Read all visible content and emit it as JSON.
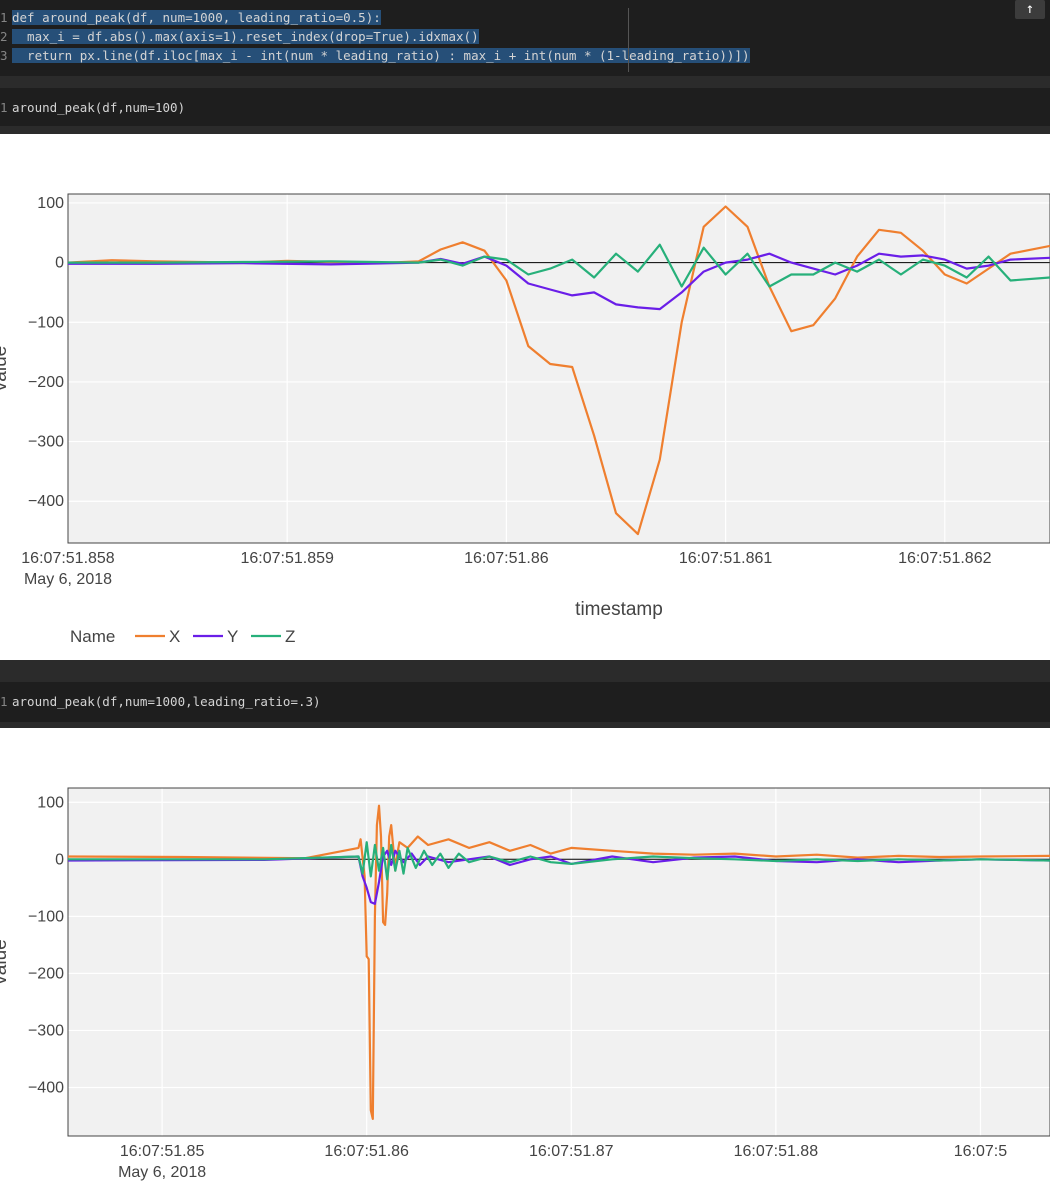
{
  "cells": [
    {
      "lines": [
        "def around_peak(df, num=1000, leading_ratio=0.5):",
        "  max_i = df.abs().max(axis=1).reset_index(drop=True).idxmax()",
        "  return px.line(df.iloc[max_i - int(num * leading_ratio) : max_i + int(num * (1-leading_ratio))])"
      ],
      "line_numbers": [
        "1",
        "2",
        "3"
      ]
    },
    {
      "lines": [
        "around_peak(df,num=100)"
      ],
      "line_numbers": [
        "1"
      ]
    },
    {
      "lines": [
        "around_peak(df,num=1000,leading_ratio=.3)"
      ],
      "line_numbers": [
        "1"
      ]
    }
  ],
  "toolbar": {
    "scroll_up_icon": "arrow-up-icon",
    "scroll_up_label": "↑"
  },
  "colors": {
    "X": "#ef7f2f",
    "Y": "#6a1ee8",
    "Z": "#27b07a",
    "plot_bg": "#f1f1f1",
    "code_bg": "#1e1e1e"
  },
  "chart_data": [
    {
      "type": "line",
      "xlabel": "timestamp",
      "ylabel": "value",
      "legend_title": "Name",
      "legend_position": "bottom-left",
      "x_ticks": [
        "16:07:51.858",
        "16:07:51.859",
        "16:07:51.86",
        "16:07:51.861",
        "16:07:51.862"
      ],
      "x_tick_date": "May 6, 2018",
      "y_ticks": [
        "100",
        "0",
        "−100",
        "−200",
        "−300",
        "−400"
      ],
      "y_tick_values": [
        100,
        0,
        -100,
        -200,
        -300,
        -400
      ],
      "ylim": [
        -470,
        115
      ],
      "xlim_ms": [
        858.0,
        862.48
      ],
      "grid": true,
      "series": [
        {
          "name": "X",
          "x": [
            858.0,
            858.2,
            858.4,
            858.6,
            858.8,
            859.0,
            859.2,
            859.4,
            859.6,
            859.7,
            859.8,
            859.9,
            860.0,
            860.1,
            860.2,
            860.3,
            860.4,
            860.5,
            860.6,
            860.7,
            860.8,
            860.9,
            861.0,
            861.1,
            861.2,
            861.3,
            861.4,
            861.5,
            861.6,
            861.7,
            861.8,
            861.9,
            862.0,
            862.1,
            862.2,
            862.3,
            862.48
          ],
          "y": [
            0,
            4,
            2,
            1,
            0,
            3,
            1,
            -1,
            2,
            22,
            34,
            20,
            -30,
            -140,
            -170,
            -175,
            -290,
            -420,
            -455,
            -330,
            -100,
            60,
            94,
            60,
            -40,
            -115,
            -105,
            -60,
            10,
            55,
            50,
            20,
            -20,
            -35,
            -10,
            15,
            28
          ]
        },
        {
          "name": "Y",
          "x": [
            858.0,
            858.4,
            858.8,
            859.2,
            859.6,
            859.7,
            859.8,
            859.9,
            860.0,
            860.1,
            860.2,
            860.3,
            860.4,
            860.5,
            860.6,
            860.7,
            860.8,
            860.9,
            861.0,
            861.1,
            861.2,
            861.3,
            861.4,
            861.5,
            861.6,
            861.7,
            861.8,
            861.9,
            862.0,
            862.1,
            862.2,
            862.3,
            862.48
          ],
          "y": [
            -2,
            -2,
            -1,
            -3,
            0,
            6,
            -2,
            10,
            -5,
            -35,
            -45,
            -55,
            -50,
            -70,
            -75,
            -78,
            -50,
            -15,
            0,
            5,
            15,
            0,
            -10,
            -20,
            -5,
            15,
            10,
            12,
            5,
            -10,
            -5,
            5,
            8
          ]
        },
        {
          "name": "Z",
          "x": [
            858.0,
            858.4,
            858.8,
            859.2,
            859.6,
            859.7,
            859.8,
            859.9,
            860.0,
            860.1,
            860.2,
            860.3,
            860.4,
            860.5,
            860.6,
            860.7,
            860.8,
            860.9,
            861.0,
            861.1,
            861.2,
            861.3,
            861.4,
            861.5,
            861.6,
            861.7,
            861.8,
            861.9,
            862.0,
            862.1,
            862.2,
            862.3,
            862.48
          ],
          "y": [
            0,
            0,
            1,
            2,
            0,
            5,
            -5,
            10,
            5,
            -20,
            -10,
            5,
            -25,
            15,
            -15,
            30,
            -40,
            25,
            -20,
            15,
            -40,
            -20,
            -20,
            0,
            -15,
            5,
            -20,
            5,
            -5,
            -25,
            10,
            -30,
            -25
          ]
        }
      ]
    },
    {
      "type": "line",
      "xlabel": "",
      "ylabel": "value",
      "x_ticks": [
        "16:07:51.85",
        "16:07:51.86",
        "16:07:51.87",
        "16:07:51.88",
        "16:07:5"
      ],
      "x_tick_date": "May 6, 2018",
      "y_ticks": [
        "100",
        "0",
        "−100",
        "−200",
        "−300",
        "−400"
      ],
      "y_tick_values": [
        100,
        0,
        -100,
        -200,
        -300,
        -400
      ],
      "ylim": [
        -485,
        125
      ],
      "xlim_ms": [
        845.4,
        893.4
      ],
      "grid": true,
      "series": [
        {
          "name": "X",
          "x": [
            845.4,
            851.0,
            857.0,
            859.6,
            859.7,
            859.9,
            860.0,
            860.1,
            860.2,
            860.3,
            860.4,
            860.5,
            860.6,
            860.7,
            860.8,
            860.9,
            861.0,
            861.1,
            861.2,
            861.3,
            861.4,
            861.5,
            861.6,
            862.0,
            862.5,
            863,
            864,
            865,
            866,
            867,
            868,
            869,
            870,
            872,
            874,
            876,
            878,
            880,
            882,
            884,
            886,
            888,
            890,
            893.4
          ],
          "y": [
            5,
            4,
            2,
            20,
            35,
            -30,
            -170,
            -175,
            -440,
            -455,
            -100,
            60,
            94,
            40,
            -110,
            -115,
            -60,
            40,
            60,
            20,
            -20,
            10,
            30,
            20,
            40,
            25,
            35,
            20,
            30,
            15,
            25,
            10,
            20,
            15,
            10,
            8,
            10,
            5,
            8,
            3,
            6,
            4,
            5,
            6
          ]
        },
        {
          "name": "Y",
          "x": [
            845.4,
            855,
            859.6,
            859.8,
            860.0,
            860.2,
            860.4,
            860.6,
            860.8,
            861.0,
            861.2,
            861.4,
            861.8,
            862.2,
            862.6,
            863.0,
            864,
            865,
            866,
            867,
            868,
            869,
            870,
            872,
            874,
            876,
            878,
            880,
            882,
            884,
            886,
            888,
            890,
            893.4
          ],
          "y": [
            -2,
            -1,
            5,
            -30,
            -50,
            -75,
            -78,
            -40,
            5,
            15,
            -10,
            15,
            -5,
            10,
            -10,
            5,
            -5,
            0,
            5,
            -10,
            0,
            5,
            -8,
            5,
            -5,
            3,
            5,
            -3,
            -5,
            0,
            -5,
            -2,
            0,
            -2
          ]
        },
        {
          "name": "Z",
          "x": [
            845.4,
            855,
            859.6,
            859.8,
            860.0,
            860.2,
            860.4,
            860.6,
            860.8,
            861.0,
            861.2,
            861.4,
            861.6,
            861.8,
            862.0,
            862.4,
            862.8,
            863.2,
            863.6,
            864,
            864.5,
            865,
            866,
            867,
            868,
            869,
            870,
            872,
            874,
            876,
            878,
            880,
            882,
            884,
            886,
            888,
            890,
            893.4
          ],
          "y": [
            0,
            0,
            5,
            -25,
            30,
            -30,
            25,
            -20,
            20,
            -35,
            25,
            -20,
            15,
            -25,
            20,
            -15,
            15,
            -10,
            10,
            -15,
            10,
            -5,
            5,
            -5,
            5,
            -5,
            -8,
            0,
            5,
            2,
            0,
            -3,
            0,
            -3,
            0,
            -2,
            0,
            -2
          ]
        }
      ]
    }
  ]
}
